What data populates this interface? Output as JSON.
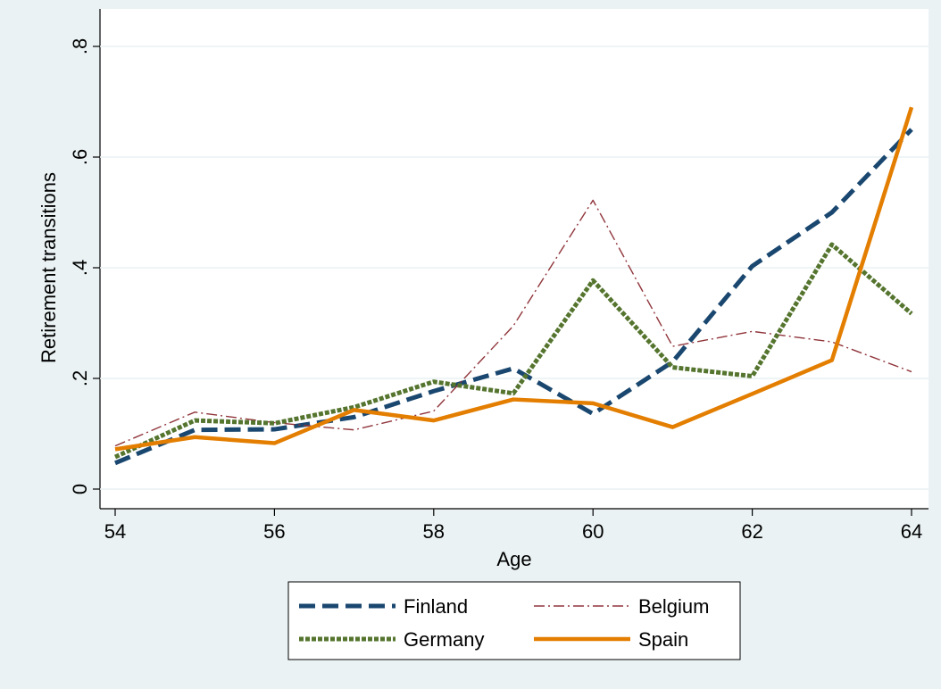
{
  "chart_data": {
    "type": "line",
    "x_label": "Age",
    "y_label": "Retirement  transitions",
    "x": [
      54,
      55,
      56,
      57,
      58,
      59,
      60,
      61,
      62,
      63,
      64
    ],
    "series": [
      {
        "name": "Finland",
        "color": "#1a476f",
        "values": [
          0.047,
          0.107,
          0.108,
          0.13,
          0.177,
          0.218,
          0.136,
          0.23,
          0.403,
          0.5,
          0.65
        ]
      },
      {
        "name": "Belgium",
        "color": "#90353b",
        "values": [
          0.078,
          0.139,
          0.12,
          0.107,
          0.141,
          0.295,
          0.522,
          0.258,
          0.285,
          0.266,
          0.212
        ]
      },
      {
        "name": "Germany",
        "color": "#55752f",
        "values": [
          0.058,
          0.124,
          0.119,
          0.148,
          0.194,
          0.173,
          0.377,
          0.22,
          0.204,
          0.442,
          0.317
        ]
      },
      {
        "name": "Spain",
        "color": "#e37e00",
        "values": [
          0.072,
          0.094,
          0.083,
          0.143,
          0.124,
          0.162,
          0.155,
          0.112,
          0.172,
          0.233,
          0.69
        ]
      }
    ],
    "xlim": [
      54,
      64
    ],
    "xticks": [
      54,
      56,
      58,
      60,
      62,
      64
    ],
    "ylim": [
      0,
      0.8
    ],
    "yticks": [
      0,
      {
        "value": 0.2,
        "label": ".2"
      },
      {
        "value": 0.4,
        "label": ".4"
      },
      {
        "value": 0.6,
        "label": ".6"
      },
      {
        "value": 0.8,
        "label": ".8"
      }
    ],
    "grid": true,
    "legend": "bottom"
  }
}
